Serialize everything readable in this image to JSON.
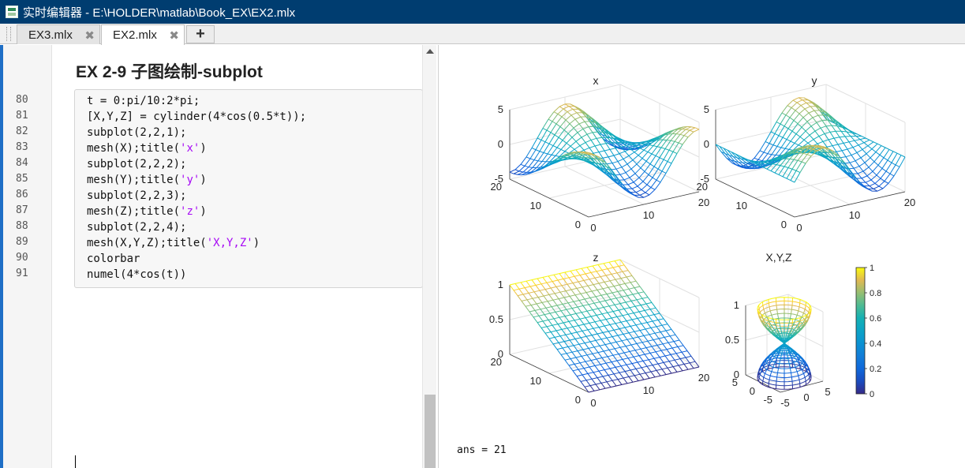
{
  "window": {
    "title": "实时编辑器 - E:\\HOLDER\\matlab\\Book_EX\\EX2.mlx",
    "icon": "live-editor-icon"
  },
  "tabs": [
    {
      "label": "EX3.mlx",
      "active": false
    },
    {
      "label": "EX2.mlx",
      "active": true
    }
  ],
  "tab_add_label": "+",
  "tab_close_glyph": "✖",
  "editor": {
    "section_title": "EX 2-9 子图绘制-subplot",
    "line_numbers": [
      "80",
      "81",
      "82",
      "83",
      "84",
      "85",
      "86",
      "87",
      "88",
      "89",
      "90",
      "91"
    ],
    "code_lines": [
      "t = 0:pi/10:2*pi;",
      "[X,Y,Z] = cylinder(4*cos(0.5*t));",
      "subplot(2,2,1);",
      "mesh(X);title('x')",
      "subplot(2,2,2);",
      "mesh(Y);title('y')",
      "subplot(2,2,3);",
      "mesh(Z);title('z')",
      "subplot(2,2,4);",
      "mesh(X,Y,Z);title('X,Y,Z')",
      "colorbar",
      "numel(4*cos(t))"
    ],
    "string_color": "#a709f5",
    "accent_color": "#1f6fc6"
  },
  "output": {
    "ans": "ans = 21"
  },
  "chart_data": [
    {
      "type": "mesh3d",
      "title": "x",
      "function": "X = 4*cos(0.5*t)*cos(theta)",
      "zticks": [
        "-5",
        "0",
        "5"
      ],
      "zlim": [
        -5,
        5
      ],
      "xticks": [
        "0",
        "10",
        "20"
      ],
      "yticks": [
        "0",
        "10",
        "20"
      ]
    },
    {
      "type": "mesh3d",
      "title": "y",
      "function": "Y = 4*cos(0.5*t)*sin(theta)",
      "zticks": [
        "-5",
        "0",
        "5"
      ],
      "zlim": [
        -5,
        5
      ],
      "xticks": [
        "0",
        "10",
        "20"
      ],
      "yticks": [
        "0",
        "10",
        "20"
      ]
    },
    {
      "type": "mesh3d",
      "title": "z",
      "function": "Z = linear 0..1 along rows",
      "zticks": [
        "0",
        "0.5",
        "1"
      ],
      "zlim": [
        0,
        1
      ],
      "xticks": [
        "0",
        "10",
        "20"
      ],
      "yticks": [
        "0",
        "10",
        "20"
      ]
    },
    {
      "type": "mesh3d",
      "title": "X,Y,Z",
      "function": "cylinder(4*cos(0.5*t)) surface",
      "zticks": [
        "0",
        "0.5",
        "1"
      ],
      "zlim": [
        0,
        1
      ],
      "xticks": [
        "-5",
        "0",
        "5"
      ],
      "yticks": [
        "-5",
        "0",
        "5"
      ]
    }
  ],
  "colorbar": {
    "ticks": [
      "0",
      "0.2",
      "0.4",
      "0.6",
      "0.8",
      "1"
    ],
    "colormap": "parula"
  }
}
